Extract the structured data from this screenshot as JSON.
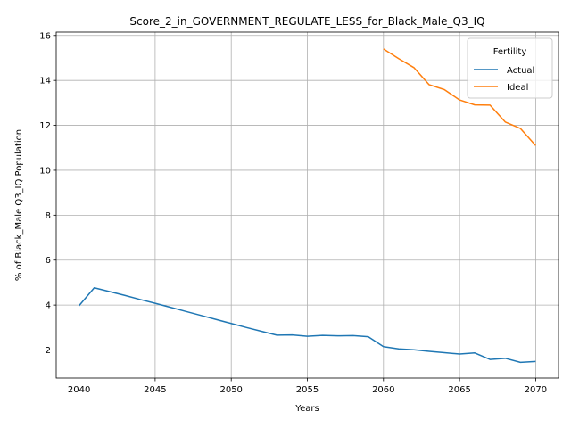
{
  "chart_data": {
    "type": "line",
    "title": "Score_2_in_GOVERNMENT_REGULATE_LESS_for_Black_Male_Q3_IQ",
    "xlabel": "Years",
    "ylabel": "% of Black_Male Q3_IQ Population",
    "xlim": [
      2038.5,
      2071.5
    ],
    "ylim": [
      0.75,
      16.15
    ],
    "xticks": [
      2040,
      2045,
      2050,
      2055,
      2060,
      2065,
      2070
    ],
    "yticks": [
      2,
      4,
      6,
      8,
      10,
      12,
      14,
      16
    ],
    "grid": true,
    "legend": {
      "title": "Fertility",
      "placement": "top-right"
    },
    "series": [
      {
        "name": "Actual",
        "color": "#1f77b4",
        "x": [
          2040,
          2041,
          2042,
          2043,
          2044,
          2045,
          2046,
          2047,
          2048,
          2049,
          2050,
          2051,
          2052,
          2053,
          2054,
          2055,
          2056,
          2057,
          2058,
          2059,
          2060,
          2061,
          2062,
          2063,
          2064,
          2065,
          2066,
          2067,
          2068,
          2069,
          2070
        ],
        "y": [
          3.97,
          4.77,
          4.6,
          4.43,
          4.25,
          4.08,
          3.9,
          3.72,
          3.54,
          3.36,
          3.18,
          3.0,
          2.83,
          2.66,
          2.67,
          2.61,
          2.65,
          2.63,
          2.64,
          2.59,
          2.15,
          2.05,
          2.01,
          1.94,
          1.88,
          1.82,
          1.87,
          1.58,
          1.63,
          1.45,
          1.49
        ]
      },
      {
        "name": "Ideal",
        "color": "#ff7f0e",
        "x": [
          2060,
          2061,
          2062,
          2063,
          2064,
          2065,
          2066,
          2067,
          2068,
          2069,
          2070
        ],
        "y": [
          15.4,
          14.97,
          14.57,
          13.81,
          13.59,
          13.13,
          12.91,
          12.9,
          12.15,
          11.86,
          11.1
        ]
      }
    ]
  }
}
